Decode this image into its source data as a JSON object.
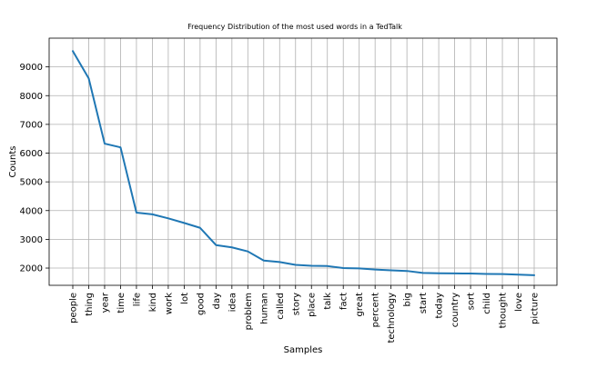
{
  "chart_data": {
    "type": "line",
    "title": "Frequency Distribution of the most used words in a TedTalk",
    "xlabel": "Samples",
    "ylabel": "Counts",
    "categories": [
      "people",
      "thing",
      "year",
      "time",
      "life",
      "kind",
      "work",
      "lot",
      "good",
      "day",
      "idea",
      "problem",
      "human",
      "called",
      "story",
      "place",
      "talk",
      "fact",
      "great",
      "percent",
      "technology",
      "big",
      "start",
      "today",
      "country",
      "sort",
      "child",
      "thought",
      "love",
      "picture"
    ],
    "series": [
      {
        "values": [
          9550,
          8600,
          6330,
          6200,
          3930,
          3870,
          3730,
          3570,
          3400,
          2800,
          2720,
          2580,
          2260,
          2210,
          2110,
          2080,
          2070,
          2000,
          1990,
          1950,
          1920,
          1900,
          1830,
          1820,
          1815,
          1810,
          1795,
          1790,
          1770,
          1750
        ],
        "color": "#1f77b4"
      }
    ],
    "yticks": [
      2000,
      3000,
      4000,
      5000,
      6000,
      7000,
      8000,
      9000
    ],
    "ylim": [
      1400,
      10000
    ],
    "grid": true
  }
}
